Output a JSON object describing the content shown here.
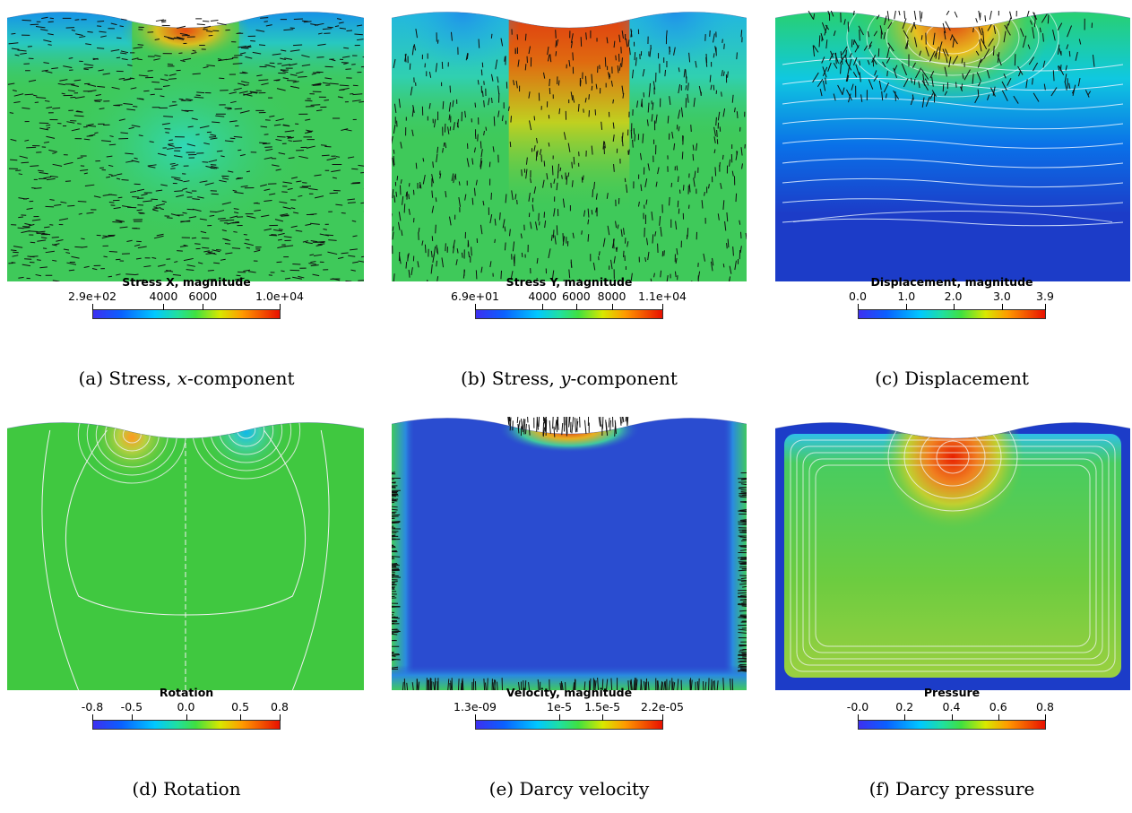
{
  "panels": [
    {
      "id": "a",
      "caption_prefix": "(a) Stress, ",
      "caption_var": "x",
      "caption_suffix": "-component",
      "colorbar_title": "Stress X, magnitude",
      "colorbar_labels": [
        "2.9e+02",
        "4000",
        "6000",
        "1.0e+04"
      ],
      "colorbar_tick_fractions": [
        0.0,
        0.38,
        0.59,
        1.0
      ],
      "field": "stress_x",
      "arrows": "horizontal",
      "contours": false
    },
    {
      "id": "b",
      "caption_prefix": "(b) Stress, ",
      "caption_var": "y",
      "caption_suffix": "-component",
      "colorbar_title": "Stress Y, magnitude",
      "colorbar_labels": [
        "6.9e+01",
        "4000",
        "6000",
        "8000",
        "1.1e+04"
      ],
      "colorbar_tick_fractions": [
        0.0,
        0.36,
        0.54,
        0.73,
        1.0
      ],
      "field": "stress_y",
      "arrows": "vertical",
      "contours": false
    },
    {
      "id": "c",
      "caption_prefix": "(c) Displacement",
      "caption_var": "",
      "caption_suffix": "",
      "colorbar_title": "Displacement, magnitude",
      "colorbar_labels": [
        "0.0",
        "1.0",
        "2.0",
        "3.0",
        "3.9"
      ],
      "colorbar_tick_fractions": [
        0.0,
        0.26,
        0.51,
        0.77,
        1.0
      ],
      "field": "displacement",
      "arrows": "top",
      "contours": true
    },
    {
      "id": "d",
      "caption_prefix": "(d) Rotation",
      "caption_var": "",
      "caption_suffix": "",
      "colorbar_title": "Rotation",
      "colorbar_labels": [
        "-0.8",
        "-0.5",
        "0.0",
        "0.5",
        "0.8"
      ],
      "colorbar_tick_fractions": [
        0.0,
        0.21,
        0.5,
        0.79,
        1.0
      ],
      "field": "rotation",
      "arrows": "none",
      "contours": true
    },
    {
      "id": "e",
      "caption_prefix": "(e) Darcy velocity",
      "caption_var": "",
      "caption_suffix": "",
      "colorbar_title": "Velocity, magnitude",
      "colorbar_labels": [
        "1.3e-09",
        "1e-5",
        "1.5e-5",
        "2.2e-05"
      ],
      "colorbar_tick_fractions": [
        0.0,
        0.45,
        0.68,
        1.0
      ],
      "field": "velocity",
      "arrows": "boundary",
      "contours": false
    },
    {
      "id": "f",
      "caption_prefix": "(f) Darcy pressure",
      "caption_var": "",
      "caption_suffix": "",
      "colorbar_title": "Pressure",
      "colorbar_labels": [
        "-0.0",
        "0.2",
        "0.4",
        "0.6",
        "0.8"
      ],
      "colorbar_tick_fractions": [
        0.0,
        0.25,
        0.5,
        0.75,
        1.0
      ],
      "field": "pressure",
      "arrows": "none",
      "contours": true
    }
  ],
  "colormap": [
    "#3b4cc0",
    "#0033ff",
    "#00c8ff",
    "#22e08a",
    "#3bd23b",
    "#ffdd00",
    "#ff6a00",
    "#d40000"
  ]
}
